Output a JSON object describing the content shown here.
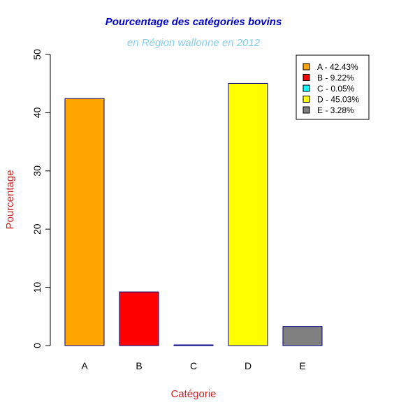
{
  "chart_data": {
    "type": "bar",
    "title": "Pourcentage des catégories bovins",
    "subtitle": "en Région wallonne en 2012",
    "xlabel": "Catégorie",
    "ylabel": "Pourcentage",
    "categories": [
      "A",
      "B",
      "C",
      "D",
      "E"
    ],
    "values": [
      42.43,
      9.22,
      0.05,
      45.03,
      3.28
    ],
    "colors": [
      "#FFA500",
      "#FF0000",
      "#00FFFF",
      "#FFFF00",
      "#808080"
    ],
    "bar_border_color": "#000080",
    "ylim": [
      0,
      50
    ],
    "yticks": [
      0,
      10,
      20,
      30,
      40,
      50
    ],
    "legend": {
      "position": "top-right",
      "entries": [
        "A - 42.43%",
        "B - 9.22%",
        "C - 0.05%",
        "D - 45.03%",
        "E - 3.28%"
      ]
    },
    "grid": false
  },
  "colors": {
    "title": "#0000CD",
    "subtitle": "#87CEEB",
    "axis_label": "#CC2222"
  }
}
